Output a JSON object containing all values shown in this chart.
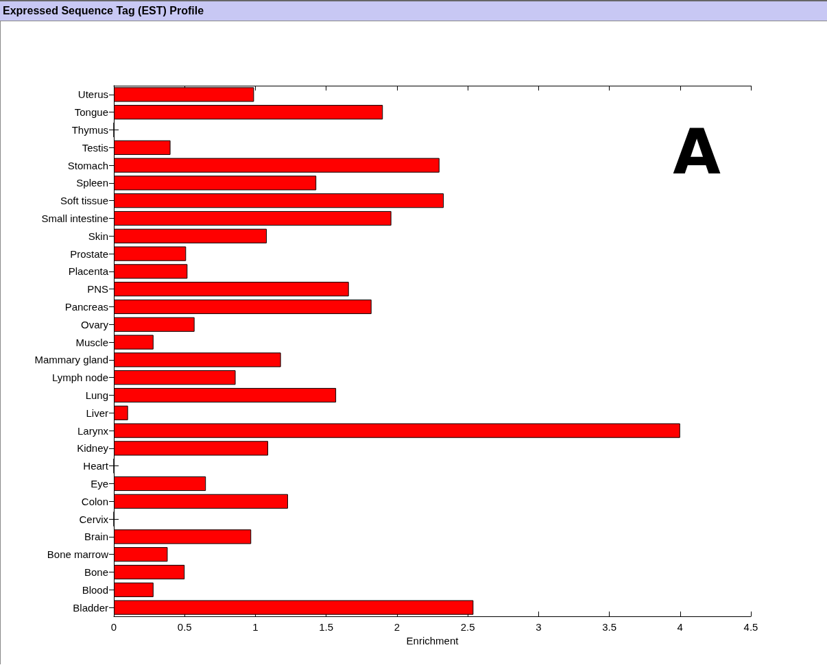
{
  "chart_data": {
    "type": "bar",
    "orientation": "horizontal",
    "title": "Expressed Sequence Tag (EST) Profile",
    "xlabel": "Enrichment",
    "annotations": [
      "A"
    ],
    "categories": [
      "Uterus",
      "Tongue",
      "Thymus",
      "Testis",
      "Stomach",
      "Spleen",
      "Soft tissue",
      "Small intestine",
      "Skin",
      "Prostate",
      "Placenta",
      "PNS",
      "Pancreas",
      "Ovary",
      "Muscle",
      "Mammary gland",
      "Lymph node",
      "Lung",
      "Liver",
      "Larynx",
      "Kidney",
      "Heart",
      "Eye",
      "Colon",
      "Cervix",
      "Brain",
      "Bone marrow",
      "Bone",
      "Blood",
      "Bladder"
    ],
    "values": [
      0.99,
      1.9,
      0,
      0.4,
      2.3,
      1.43,
      2.33,
      1.96,
      1.08,
      0.51,
      0.52,
      1.66,
      1.82,
      0.57,
      0.28,
      1.18,
      0.86,
      1.57,
      0.1,
      4.0,
      1.09,
      0,
      0.65,
      1.23,
      0,
      0.97,
      0.38,
      0.5,
      0.28,
      2.54
    ],
    "color": "#ff0000",
    "xlim": [
      0,
      4.5
    ],
    "xticks": [
      0,
      0.5,
      1,
      1.5,
      2,
      2.5,
      3,
      3.5,
      4,
      4.5
    ]
  }
}
